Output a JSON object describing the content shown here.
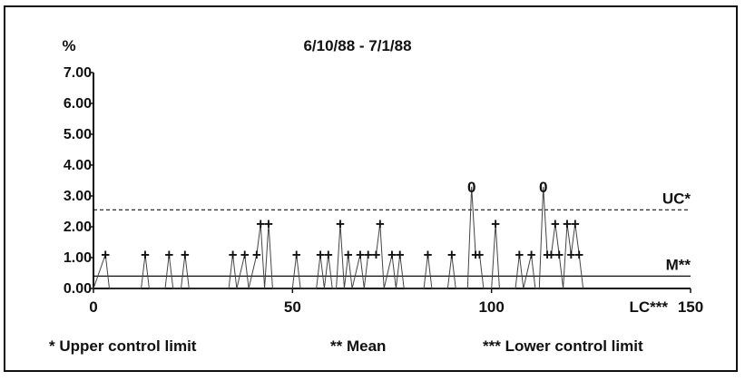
{
  "chart_data": {
    "type": "line",
    "title": "6/10/88 - 7/1/88",
    "ylabel": "%",
    "xlabel": "",
    "xlim": [
      0,
      150
    ],
    "ylim": [
      0,
      7
    ],
    "x_ticks": [
      {
        "value": 0,
        "label": "0"
      },
      {
        "value": 50,
        "label": "50"
      },
      {
        "value": 100,
        "label": "100"
      },
      {
        "value": 150,
        "label": "150"
      }
    ],
    "y_ticks": [
      {
        "value": 0,
        "label": "0.00"
      },
      {
        "value": 1,
        "label": "1.00"
      },
      {
        "value": 2,
        "label": "2.00"
      },
      {
        "value": 3,
        "label": "3.00"
      },
      {
        "value": 4,
        "label": "4.00"
      },
      {
        "value": 5,
        "label": "5.00"
      },
      {
        "value": 6,
        "label": "6.00"
      },
      {
        "value": 7,
        "label": "7.00"
      }
    ],
    "control_lines": [
      {
        "label": "UC*",
        "value": 2.55,
        "style": "dashed"
      },
      {
        "label": "M**",
        "value": 0.4,
        "style": "solid"
      },
      {
        "label": "LC***",
        "value": 0.0,
        "style": "solid"
      }
    ],
    "series": [
      {
        "points": [
          {
            "x": 0,
            "y": 0
          },
          {
            "x": 3,
            "y": 1.1,
            "marker": "+"
          },
          {
            "x": 4,
            "y": 0
          },
          {
            "x": 12,
            "y": 0
          },
          {
            "x": 13,
            "y": 1.1,
            "marker": "+"
          },
          {
            "x": 14,
            "y": 0
          },
          {
            "x": 18,
            "y": 0
          },
          {
            "x": 19,
            "y": 1.1,
            "marker": "+"
          },
          {
            "x": 20,
            "y": 0
          },
          {
            "x": 22,
            "y": 0
          },
          {
            "x": 23,
            "y": 1.1,
            "marker": "+"
          },
          {
            "x": 24,
            "y": 0
          },
          {
            "x": 34,
            "y": 0
          },
          {
            "x": 35,
            "y": 1.1,
            "marker": "+"
          },
          {
            "x": 36,
            "y": 0
          },
          {
            "x": 38,
            "y": 1.1,
            "marker": "+"
          },
          {
            "x": 39,
            "y": 0
          },
          {
            "x": 41,
            "y": 1.1,
            "marker": "+"
          },
          {
            "x": 42,
            "y": 2.1,
            "marker": "+"
          },
          {
            "x": 43,
            "y": 0
          },
          {
            "x": 44,
            "y": 2.1,
            "marker": "+"
          },
          {
            "x": 45,
            "y": 0
          },
          {
            "x": 50,
            "y": 0
          },
          {
            "x": 51,
            "y": 1.1,
            "marker": "+"
          },
          {
            "x": 52,
            "y": 0
          },
          {
            "x": 56,
            "y": 0
          },
          {
            "x": 57,
            "y": 1.1,
            "marker": "+"
          },
          {
            "x": 58,
            "y": 0
          },
          {
            "x": 59,
            "y": 1.1,
            "marker": "+"
          },
          {
            "x": 60,
            "y": 0
          },
          {
            "x": 61,
            "y": 0
          },
          {
            "x": 62,
            "y": 2.1,
            "marker": "+"
          },
          {
            "x": 63,
            "y": 0
          },
          {
            "x": 64,
            "y": 1.1,
            "marker": "+"
          },
          {
            "x": 65,
            "y": 0
          },
          {
            "x": 67,
            "y": 1.1,
            "marker": "+"
          },
          {
            "x": 68,
            "y": 0
          },
          {
            "x": 69,
            "y": 1.1,
            "marker": "+"
          },
          {
            "x": 71,
            "y": 1.1,
            "marker": "+"
          },
          {
            "x": 72,
            "y": 2.1,
            "marker": "+"
          },
          {
            "x": 73,
            "y": 0
          },
          {
            "x": 75,
            "y": 1.1,
            "marker": "+"
          },
          {
            "x": 76,
            "y": 0
          },
          {
            "x": 77,
            "y": 1.1,
            "marker": "+"
          },
          {
            "x": 78,
            "y": 0
          },
          {
            "x": 83,
            "y": 0
          },
          {
            "x": 84,
            "y": 1.1,
            "marker": "+"
          },
          {
            "x": 85,
            "y": 0
          },
          {
            "x": 89,
            "y": 0
          },
          {
            "x": 90,
            "y": 1.1,
            "marker": "+"
          },
          {
            "x": 91,
            "y": 0
          },
          {
            "x": 94,
            "y": 0
          },
          {
            "x": 95,
            "y": 3.3,
            "marker": "0"
          },
          {
            "x": 96,
            "y": 1.1,
            "marker": "+"
          },
          {
            "x": 97,
            "y": 1.1,
            "marker": "+"
          },
          {
            "x": 98,
            "y": 0
          },
          {
            "x": 100,
            "y": 0
          },
          {
            "x": 101,
            "y": 2.1,
            "marker": "+"
          },
          {
            "x": 102,
            "y": 0
          },
          {
            "x": 106,
            "y": 0
          },
          {
            "x": 107,
            "y": 1.1,
            "marker": "+"
          },
          {
            "x": 108,
            "y": 0
          },
          {
            "x": 110,
            "y": 1.1,
            "marker": "+"
          },
          {
            "x": 111,
            "y": 0
          },
          {
            "x": 112,
            "y": 0
          },
          {
            "x": 113,
            "y": 3.3,
            "marker": "0"
          },
          {
            "x": 114,
            "y": 1.1,
            "marker": "+"
          },
          {
            "x": 115,
            "y": 1.1,
            "marker": "+"
          },
          {
            "x": 116,
            "y": 2.1,
            "marker": "+"
          },
          {
            "x": 117,
            "y": 1.1,
            "marker": "+"
          },
          {
            "x": 118,
            "y": 0
          },
          {
            "x": 119,
            "y": 2.1,
            "marker": "+"
          },
          {
            "x": 120,
            "y": 1.1,
            "marker": "+"
          },
          {
            "x": 121,
            "y": 2.1,
            "marker": "+"
          },
          {
            "x": 122,
            "y": 1.1,
            "marker": "+"
          },
          {
            "x": 123,
            "y": 0
          }
        ]
      }
    ]
  },
  "footnotes": {
    "upper": "* Upper control limit",
    "mean": "** Mean",
    "lower": "*** Lower control limit"
  },
  "colors": {
    "ink": "#111111",
    "data_line": "#444444",
    "background": "#ffffff"
  }
}
